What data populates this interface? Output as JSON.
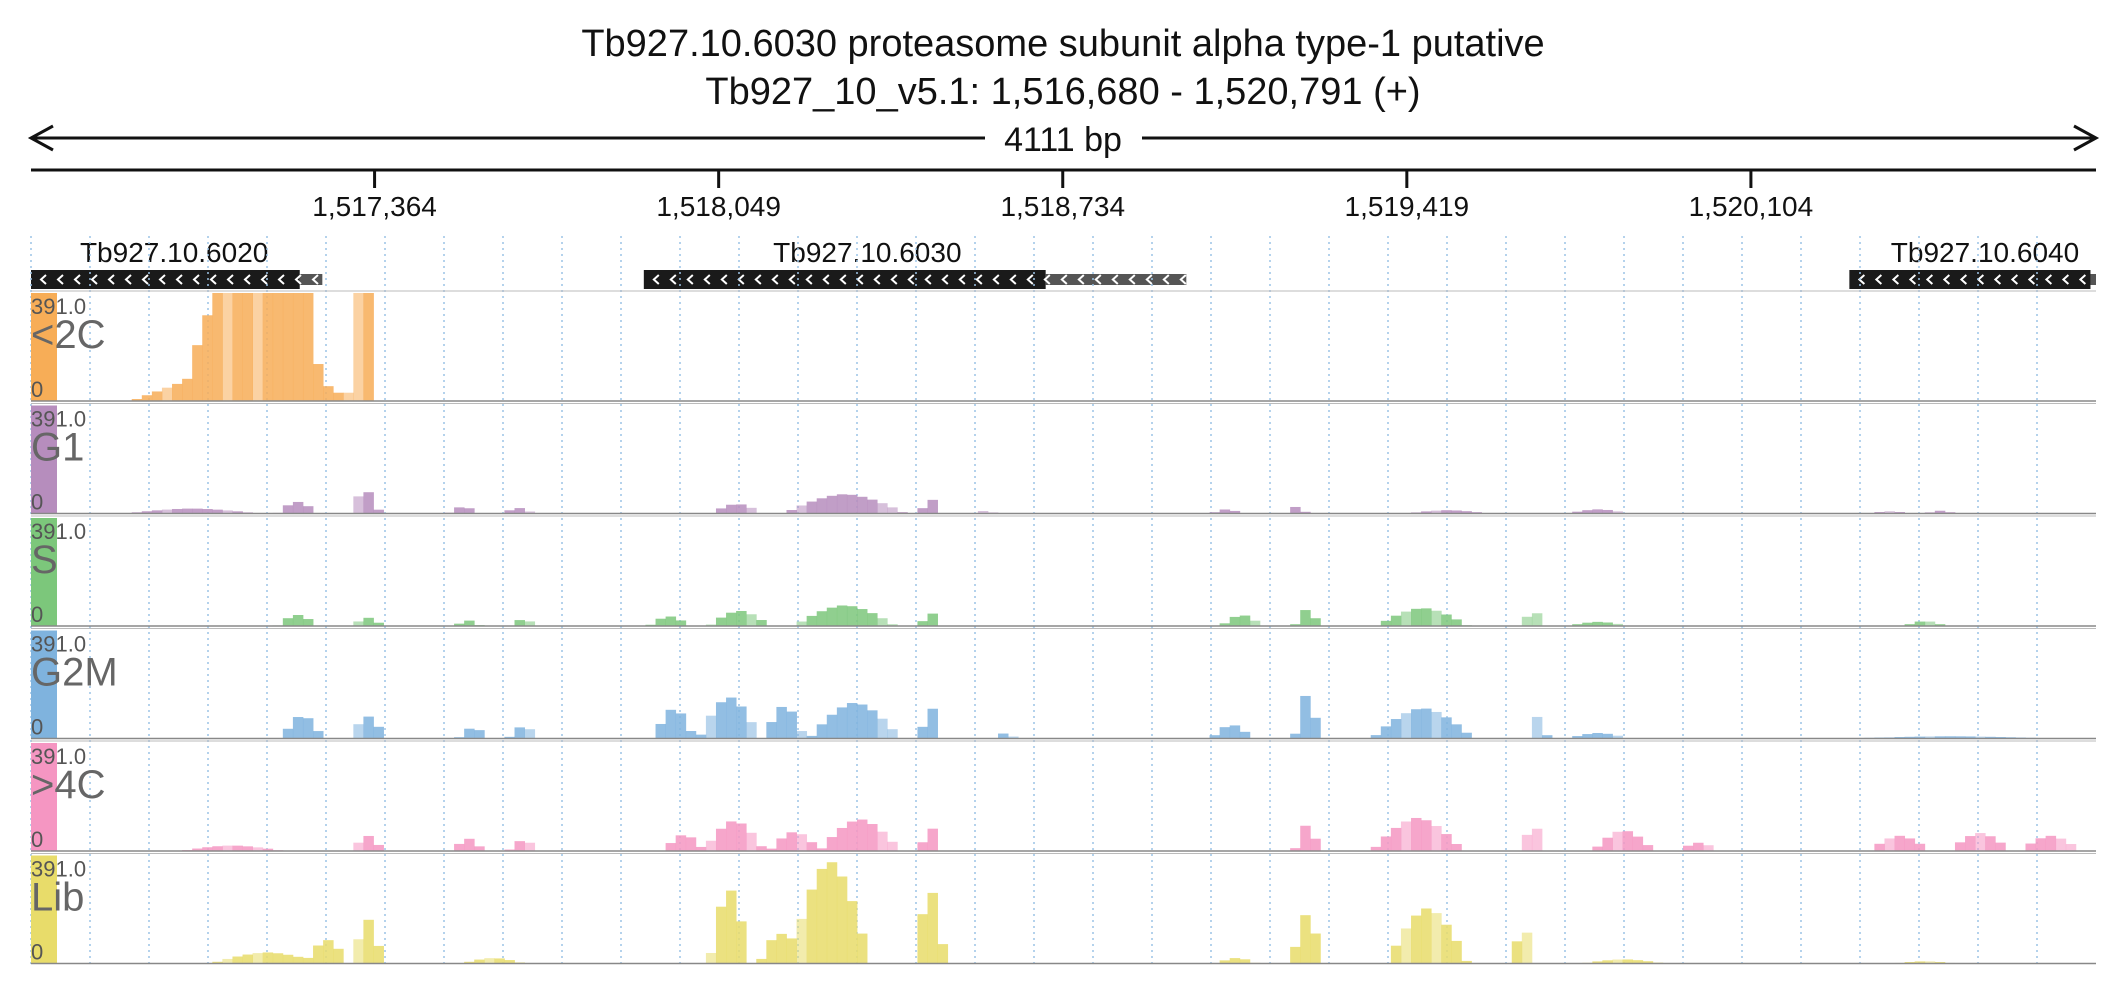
{
  "title": {
    "line1": "Tb927.10.6030  proteasome subunit alpha type-1  putative",
    "line2": "Tb927_10_v5.1: 1,516,680 - 1,520,791 (+)"
  },
  "chart_data": {
    "type": "area",
    "region": {
      "chromosome": "Tb927_10_v5.1",
      "start": 1516680,
      "end": 1520791,
      "strand": "+"
    },
    "span_label": "4111 bp",
    "ticks": [
      {
        "value": 1517364,
        "label": "1,517,364"
      },
      {
        "value": 1518049,
        "label": "1,518,049"
      },
      {
        "value": 1518734,
        "label": "1,518,734"
      },
      {
        "value": 1519419,
        "label": "1,519,419"
      },
      {
        "value": 1520104,
        "label": "1,520,104"
      }
    ],
    "genes": [
      {
        "id": "Tb927.10.6020",
        "cds": [
          1516680,
          1517215
        ],
        "utr": [
          1517215,
          1517260
        ],
        "label_at": 1516965,
        "strand": "-"
      },
      {
        "id": "Tb927.10.6030",
        "cds": [
          1517900,
          1518700
        ],
        "utr": [
          1518700,
          1518980
        ],
        "label_at": 1518345,
        "strand": "-"
      },
      {
        "id": "Tb927.10.6040",
        "cds": [
          1520300,
          1520780
        ],
        "utr": [
          1520780,
          1520791
        ],
        "label_at": 1520570,
        "strand": "-"
      }
    ],
    "y_range": [
      0,
      391.0
    ],
    "y_labels": {
      "max": "391.0",
      "min": "0"
    },
    "grid": true,
    "bins": 205,
    "tracks": [
      {
        "name": "<2C",
        "color": "#f7ad57",
        "peaks": [
          [
            1516880,
            1517450,
            0
          ],
          [
            1516990,
            0,
            0
          ],
          [
            1517100,
            395,
            110
          ],
          [
            1517250,
            391,
            80
          ],
          [
            1517300,
            40,
            12
          ],
          [
            1517340,
            391,
            25
          ]
        ]
      },
      {
        "name": "G1",
        "color": "#b68dbd",
        "peaks": [
          [
            1517000,
            18,
            130
          ],
          [
            1517210,
            42,
            40
          ],
          [
            1517345,
            85,
            30
          ],
          [
            1517540,
            25,
            30
          ],
          [
            1517650,
            20,
            30
          ],
          [
            1518085,
            35,
            50
          ],
          [
            1518300,
            70,
            120
          ],
          [
            1518470,
            55,
            20
          ],
          [
            1518580,
            10,
            20
          ],
          [
            1519060,
            15,
            30
          ],
          [
            1519200,
            25,
            20
          ],
          [
            1519500,
            12,
            80
          ],
          [
            1519800,
            15,
            60
          ],
          [
            1520380,
            8,
            40
          ],
          [
            1520480,
            10,
            30
          ]
        ]
      },
      {
        "name": "S",
        "color": "#7cc77b",
        "peaks": [
          [
            1517210,
            40,
            40
          ],
          [
            1517350,
            30,
            30
          ],
          [
            1517550,
            20,
            25
          ],
          [
            1517660,
            25,
            25
          ],
          [
            1517950,
            35,
            40
          ],
          [
            1518090,
            55,
            60
          ],
          [
            1518300,
            75,
            100
          ],
          [
            1518470,
            50,
            20
          ],
          [
            1519090,
            40,
            40
          ],
          [
            1519220,
            60,
            25
          ],
          [
            1519450,
            65,
            90
          ],
          [
            1519670,
            60,
            20
          ],
          [
            1519800,
            15,
            60
          ],
          [
            1520450,
            18,
            40
          ]
        ]
      },
      {
        "name": "G2M",
        "color": "#7fb3de",
        "peaks": [
          [
            1517220,
            85,
            40
          ],
          [
            1517350,
            80,
            35
          ],
          [
            1517560,
            40,
            30
          ],
          [
            1517660,
            45,
            30
          ],
          [
            1517960,
            110,
            40
          ],
          [
            1518070,
            150,
            60
          ],
          [
            1518180,
            120,
            40
          ],
          [
            1518320,
            130,
            90
          ],
          [
            1518470,
            120,
            20
          ],
          [
            1518620,
            20,
            20
          ],
          [
            1519070,
            50,
            40
          ],
          [
            1519220,
            160,
            25
          ],
          [
            1519450,
            110,
            100
          ],
          [
            1519680,
            80,
            20
          ],
          [
            1519800,
            20,
            60
          ],
          [
            1520500,
            8,
            200
          ]
        ]
      },
      {
        "name": ">4C",
        "color": "#f596c2",
        "peaks": [
          [
            1517080,
            20,
            100
          ],
          [
            1517350,
            55,
            30
          ],
          [
            1517550,
            45,
            30
          ],
          [
            1517660,
            40,
            30
          ],
          [
            1517980,
            60,
            40
          ],
          [
            1518080,
            110,
            60
          ],
          [
            1518200,
            70,
            50
          ],
          [
            1518330,
            115,
            80
          ],
          [
            1518470,
            90,
            20
          ],
          [
            1519220,
            95,
            25
          ],
          [
            1519440,
            120,
            90
          ],
          [
            1519670,
            105,
            20
          ],
          [
            1519850,
            75,
            60
          ],
          [
            1520000,
            30,
            40
          ],
          [
            1520400,
            55,
            60
          ],
          [
            1520560,
            65,
            60
          ],
          [
            1520700,
            55,
            60
          ]
        ]
      },
      {
        "name": "Lib",
        "color": "#e8dc6a",
        "peaks": [
          [
            1517150,
            40,
            110
          ],
          [
            1517270,
            85,
            40
          ],
          [
            1517350,
            160,
            30
          ],
          [
            1517600,
            20,
            60
          ],
          [
            1518070,
            270,
            40
          ],
          [
            1518270,
            370,
            80
          ],
          [
            1518170,
            110,
            40
          ],
          [
            1518470,
            270,
            30
          ],
          [
            1519080,
            20,
            40
          ],
          [
            1519220,
            180,
            30
          ],
          [
            1519460,
            200,
            80
          ],
          [
            1519650,
            145,
            20
          ],
          [
            1519850,
            15,
            80
          ],
          [
            1520450,
            8,
            60
          ]
        ]
      }
    ]
  }
}
